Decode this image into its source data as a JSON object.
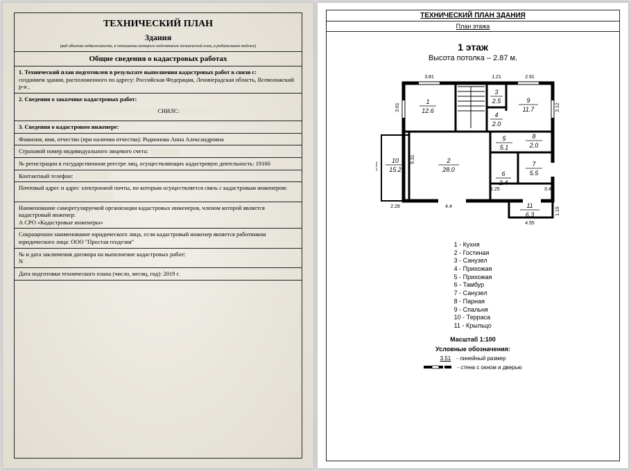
{
  "left": {
    "title": "ТЕХНИЧЕСКИЙ ПЛАН",
    "subtitle": "Здания",
    "note": "(вид объекта недвижимости, в отношении которого подготовлен технический план, в родительном падеже)",
    "section_header": "Общие сведения о кадастровых работах",
    "row1_label": "1. Технический план подготовлен в результате выполнения кадастровых работ в связи с:",
    "row1_text": "созданием здания, расположенного по адресу: Российская Федерация, Ленинградская область, Всеволожский р-н ,",
    "row2_label": "2. Сведения о заказчике кадастровых работ:",
    "row2_text": "СНИЛС:",
    "row3_label": "3. Сведения о кадастровом инженере:",
    "row3a": "Фамилия, имя, отчество (при наличии отчества): Родионова Анна Александровна",
    "row3b": "Страховой номер индивидуального лицевого счета:",
    "row3c": "№ регистрации в государственном реестре лиц, осуществляющих кадастровую деятельность: 19160",
    "row3d": "Контактный телефон:",
    "row3e": "Почтовый адрес и адрес электронной почты, по которым осуществляется связь с кадастровым инженером:",
    "row3f": "Наименование саморегулируемой организации кадастровых инженеров, членом которой является кадастровый инженер:\nА СРО «Кадастровые инженеры»",
    "row3g": "Сокращенное наименование юридического лица, если кадастровый инженер является работником юридического лица: ООО \"Простая геодезия\"",
    "row3h": "№ и дата заключения договора на выполнение кадастровых работ:\nN",
    "row3i": "Дата подготовки технического плана (число, месяц, год):            2019 г."
  },
  "right": {
    "header": "ТЕХНИЧЕСКИЙ ПЛАН ЗДАНИЯ",
    "subheader": "План этажа",
    "floor_title": "1 этаж",
    "ceiling": "Высота потолка – 2.87 м.",
    "rooms": [
      {
        "n": "1",
        "name": "Кухня",
        "area": "12.6"
      },
      {
        "n": "2",
        "name": "Гостиная",
        "area": "28.0"
      },
      {
        "n": "3",
        "name": "Санузел",
        "area": "2.5"
      },
      {
        "n": "4",
        "name": "Прихожая",
        "area": "2.0"
      },
      {
        "n": "5",
        "name": "Прихожая",
        "area": "5.1"
      },
      {
        "n": "6",
        "name": "Тамбур",
        "area": "2.4"
      },
      {
        "n": "7",
        "name": "Санузел",
        "area": "5.5"
      },
      {
        "n": "8",
        "name": "Парная",
        "area": "2.0"
      },
      {
        "n": "9",
        "name": "Спальня",
        "area": "11.7"
      },
      {
        "n": "10",
        "name": "Терраса",
        "area": "15.2"
      },
      {
        "n": "11",
        "name": "Крыльцо",
        "area": "6.3"
      }
    ],
    "scale": "Масштаб 1:100",
    "legend_hdr": "Условные обозначения:",
    "sym1_val": "3.51",
    "sym1_label": "- линейный размер",
    "sym2_label": "- стена с окном и дверью",
    "dims": {
      "top1": "3.81",
      "top2": "1.21",
      "top3": "2.91",
      "left1": "3.61",
      "left2": "5.41",
      "right1": "3.12",
      "right2": "1.19",
      "bot1": "2.28",
      "bot2": "4.4",
      "bot3": "4.55",
      "inner1": "5.31",
      "inner2": "1.25",
      "inner3": "0.41"
    },
    "colors": {
      "wall": "#000000",
      "bg": "#ffffff",
      "text": "#000000"
    }
  }
}
